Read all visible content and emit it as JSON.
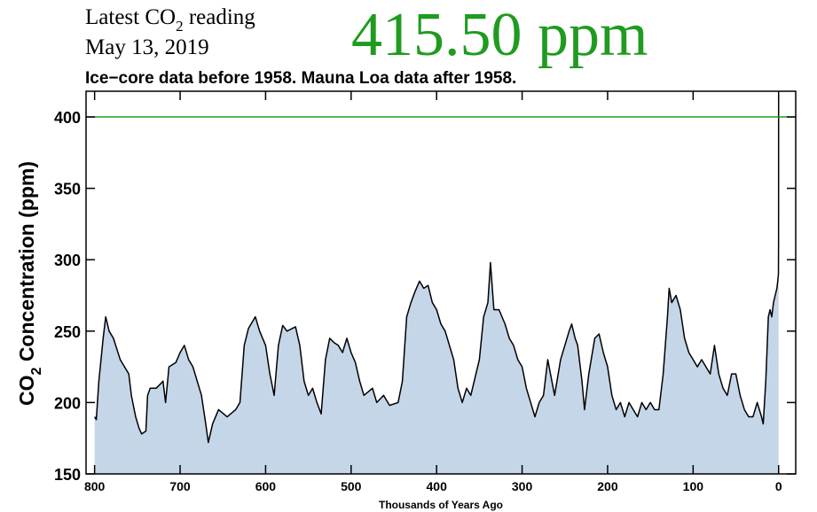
{
  "chart_data": {
    "type": "area",
    "reading_label": [
      "Latest CO",
      "2",
      " reading"
    ],
    "reading_date": "May 13, 2019",
    "reading_value": "415.50 ppm",
    "reading_color": "#1f9b1f",
    "title": "Ice−core data before 1958. Mauna Loa data after 1958.",
    "ylabel": [
      "CO",
      "2",
      " Concentration (ppm)"
    ],
    "xlabel": "Thousands of Years Ago",
    "xlim": [
      810,
      -20
    ],
    "ylim": [
      150,
      418
    ],
    "xticks": [
      800,
      700,
      600,
      500,
      400,
      300,
      200,
      100,
      0
    ],
    "yticks": [
      150,
      200,
      250,
      300,
      350,
      400
    ],
    "reference_line": 400,
    "reference_color": "#1f9b1f",
    "line_color": "#000000",
    "fill_color": "#c5d6e9",
    "x": [
      800,
      798,
      795,
      790,
      787,
      783,
      778,
      770,
      765,
      760,
      757,
      752,
      748,
      745,
      740,
      738,
      735,
      728,
      723,
      720,
      717,
      713,
      705,
      700,
      695,
      690,
      685,
      680,
      675,
      670,
      667,
      662,
      655,
      645,
      635,
      630,
      625,
      620,
      612,
      607,
      600,
      595,
      590,
      585,
      580,
      575,
      565,
      560,
      555,
      550,
      545,
      540,
      535,
      530,
      525,
      520,
      515,
      510,
      505,
      500,
      495,
      490,
      485,
      475,
      470,
      462,
      455,
      445,
      440,
      435,
      430,
      425,
      420,
      415,
      410,
      405,
      400,
      395,
      390,
      385,
      380,
      375,
      370,
      365,
      360,
      350,
      345,
      340,
      337,
      333,
      327,
      320,
      315,
      310,
      305,
      300,
      295,
      290,
      285,
      280,
      275,
      270,
      262,
      255,
      250,
      245,
      242,
      238,
      235,
      230,
      227,
      222,
      215,
      210,
      205,
      200,
      195,
      190,
      185,
      180,
      175,
      170,
      165,
      160,
      155,
      150,
      145,
      140,
      135,
      130,
      128,
      125,
      120,
      115,
      110,
      105,
      100,
      95,
      90,
      85,
      80,
      75,
      70,
      65,
      60,
      55,
      50,
      45,
      40,
      35,
      30,
      25,
      20,
      18,
      15,
      12,
      10,
      8,
      6,
      4,
      2,
      1,
      0.2,
      0.05,
      0
    ],
    "values": [
      190,
      188,
      215,
      245,
      260,
      250,
      245,
      230,
      225,
      220,
      205,
      190,
      182,
      178,
      180,
      205,
      210,
      210,
      213,
      215,
      200,
      225,
      228,
      235,
      240,
      230,
      225,
      215,
      205,
      185,
      172,
      185,
      195,
      190,
      195,
      200,
      240,
      252,
      260,
      250,
      240,
      220,
      205,
      240,
      254,
      250,
      253,
      240,
      215,
      205,
      210,
      200,
      192,
      230,
      245,
      242,
      240,
      235,
      245,
      235,
      228,
      215,
      205,
      210,
      200,
      205,
      198,
      200,
      215,
      260,
      270,
      278,
      285,
      280,
      282,
      270,
      265,
      255,
      250,
      240,
      230,
      210,
      200,
      210,
      205,
      230,
      260,
      270,
      298,
      265,
      265,
      255,
      245,
      240,
      230,
      225,
      210,
      200,
      190,
      200,
      205,
      230,
      205,
      230,
      240,
      250,
      255,
      245,
      240,
      215,
      195,
      220,
      245,
      248,
      235,
      225,
      205,
      195,
      200,
      190,
      200,
      195,
      190,
      200,
      195,
      200,
      195,
      195,
      220,
      260,
      280,
      270,
      275,
      265,
      245,
      235,
      230,
      225,
      230,
      225,
      220,
      240,
      220,
      210,
      205,
      220,
      220,
      205,
      195,
      190,
      190,
      200,
      190,
      185,
      215,
      260,
      265,
      260,
      270,
      275,
      280,
      285,
      290,
      315,
      415.5
    ]
  }
}
